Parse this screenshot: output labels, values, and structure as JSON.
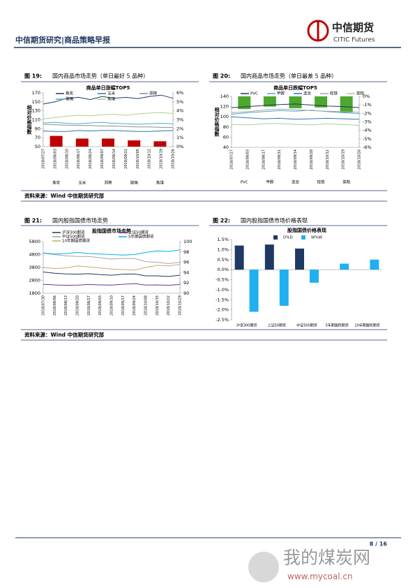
{
  "header": {
    "title": "中信期货研究|商品策略早报",
    "logo_cn": "中信期货",
    "logo_en": "CITIC Futures"
  },
  "figures": [
    {
      "number": "图 19:",
      "caption": "国内商品市场走势（单日最好 5 品种）"
    },
    {
      "number": "图 20:",
      "caption": "国内商品市场走势（单日最差 5 品种）"
    },
    {
      "number": "图 21:",
      "caption": "国内股指国债市场走势"
    },
    {
      "number": "图 22:",
      "caption": "国内股指国债市场价格表现"
    }
  ],
  "sources": [
    "资料来源：Wind 中信期货研究部",
    "资料来源：Wind 中信期货研究部"
  ],
  "footer": {
    "page": "8 / 16"
  },
  "watermark": {
    "text": "我的煤炭网",
    "url": "www.mycoal.cn"
  },
  "chart_data": [
    {
      "type": "line",
      "title": "商品单日涨幅TOP5",
      "ylabel": "相对价格指数",
      "x": [
        "2018/07/27",
        "2018/08/03",
        "2018/08/10",
        "2018/08/17",
        "2018/08/24",
        "2018/09/07",
        "2018/09/14",
        "2018/09/21",
        "2018/10/05",
        "2018/10/12",
        "2018/10/19",
        "2018/10/26"
      ],
      "series": [
        {
          "name": "焦炭",
          "color": "#1f3864",
          "values": [
            145,
            150,
            158,
            160,
            155,
            162,
            158,
            160,
            157,
            162,
            165,
            158
          ]
        },
        {
          "name": "玉米",
          "color": "#2e75b6",
          "values": [
            85,
            84,
            84,
            86,
            85,
            86,
            86,
            85,
            84,
            84,
            85,
            86
          ]
        },
        {
          "name": "郑棉",
          "color": "#8c8c8c",
          "values": [
            100,
            99,
            98,
            97,
            97,
            96,
            96,
            95,
            94,
            94,
            93,
            93
          ]
        },
        {
          "name": "玻璃",
          "color": "#4bacc6",
          "values": [
            103,
            104,
            102,
            101,
            103,
            104,
            102,
            101,
            100,
            101,
            102,
            101
          ]
        },
        {
          "name": "焦煤",
          "color": "#a9d18e",
          "values": [
            112,
            115,
            118,
            120,
            119,
            121,
            122,
            120,
            123,
            125,
            126,
            124
          ]
        }
      ],
      "bar_categories": [
        "焦炭",
        "玉米",
        "郑棉",
        "玻璃",
        "焦煤"
      ],
      "bar_values": [
        1.2,
        0.9,
        0.9,
        0.7,
        0.6
      ],
      "bar_color": "#c00000",
      "ylim": [
        50,
        170
      ],
      "yticks": [
        50,
        70,
        90,
        110,
        130,
        150,
        170
      ],
      "y2lim": [
        0,
        6
      ],
      "y2ticks": [
        {
          "value": 0,
          "label": "0%"
        },
        {
          "value": 1,
          "label": "1%"
        },
        {
          "value": 2,
          "label": "2%"
        },
        {
          "value": 3,
          "label": "3%"
        },
        {
          "value": 4,
          "label": "4%"
        },
        {
          "value": 5,
          "label": "5%"
        },
        {
          "value": 6,
          "label": "6%"
        }
      ]
    },
    {
      "type": "line",
      "title": "商品单日跌幅TOP5",
      "ylabel": "相对价格指数",
      "x": [
        "2018/07/27",
        "2018/08/03",
        "2018/08/17",
        "2018/08/31",
        "2018/09/14",
        "2018/09/28",
        "2018/10/12",
        "2018/10/19",
        "2018/10/26"
      ],
      "series": [
        {
          "name": "PVC",
          "color": "#1f3864",
          "values": [
            118,
            120,
            122,
            124,
            125,
            123,
            121,
            120,
            118
          ]
        },
        {
          "name": "甲醇",
          "color": "#4bacc6",
          "values": [
            105,
            108,
            110,
            112,
            111,
            113,
            110,
            108,
            106
          ]
        },
        {
          "name": "连豆",
          "color": "#2e75b6",
          "values": [
            100,
            98,
            96,
            97,
            95,
            96,
            97,
            96,
            95
          ]
        },
        {
          "name": "硅铁",
          "color": "#a5a5a5",
          "values": [
            108,
            110,
            113,
            115,
            114,
            112,
            111,
            110,
            109
          ]
        },
        {
          "name": "菜粕",
          "color": "#a9d18e",
          "values": [
            85,
            84,
            86,
            87,
            85,
            84,
            86,
            85,
            83
          ]
        }
      ],
      "bar_categories": [
        "PVC",
        "甲醇",
        "连豆",
        "硅铁",
        "菜粕"
      ],
      "bar_values": [
        -1.5,
        -1.2,
        -1.4,
        -1.3,
        -1.9
      ],
      "bar_color": "#4ea72e",
      "ylim": [
        40,
        140
      ],
      "yticks": [
        40,
        60,
        80,
        100,
        120,
        140
      ],
      "y2lim": [
        -6,
        0
      ],
      "y2ticks": [
        {
          "value": -6,
          "label": "-6%"
        },
        {
          "value": -5,
          "label": "-5%"
        },
        {
          "value": -4,
          "label": "-4%"
        },
        {
          "value": -3,
          "label": "-3%"
        },
        {
          "value": -2,
          "label": "-2%"
        },
        {
          "value": -1,
          "label": "-1%"
        },
        {
          "value": 0,
          "label": "0%"
        }
      ]
    },
    {
      "type": "line",
      "title": "股指国债市场走势",
      "x": [
        "2018/07/30",
        "2018/08/06",
        "2018/08/13",
        "2018/08/20",
        "2018/08/27",
        "2018/09/03",
        "2018/09/10",
        "2018/09/17",
        "2018/09/24",
        "2018/10/08",
        "2018/10/15",
        "2018/10/22",
        "2018/10/29"
      ],
      "series": [
        {
          "name": "沪深300期货",
          "color": "#1f3864",
          "values": [
            3450,
            3350,
            3300,
            3280,
            3320,
            3250,
            3200,
            3280,
            3300,
            3150,
            3150,
            3100,
            3200
          ]
        },
        {
          "name": "上证50期货",
          "color": "#7030a0",
          "values": [
            2500,
            2450,
            2420,
            2430,
            2480,
            2450,
            2430,
            2500,
            2550,
            2430,
            2450,
            2420,
            2480
          ]
        },
        {
          "name": "中证500期货",
          "color": "#a5a5a5",
          "values": [
            4900,
            4800,
            4700,
            4650,
            4650,
            4550,
            4450,
            4500,
            4500,
            4250,
            4200,
            4100,
            4200
          ]
        },
        {
          "name": "5年期国债期货",
          "color": "#00b0f0",
          "axis": "y2",
          "values": [
            97.8,
            97.6,
            97.7,
            97.9,
            97.7,
            97.6,
            97.5,
            97.4,
            97.5,
            97.9,
            98.2,
            98.1,
            98.4
          ]
        },
        {
          "name": "10年期国债期货",
          "color": "#c9a96e",
          "axis": "y2",
          "values": [
            95.0,
            94.8,
            94.9,
            95.3,
            95.1,
            94.9,
            94.7,
            94.6,
            94.5,
            95.0,
            95.4,
            95.3,
            95.6
          ]
        }
      ],
      "ylim": [
        1800,
        5800
      ],
      "yticks": [
        1800,
        2800,
        3800,
        4800,
        5800
      ],
      "y2lim": [
        90,
        100
      ],
      "y2ticks": [
        90,
        92,
        94,
        96,
        98,
        100
      ]
    },
    {
      "type": "bar",
      "title": "股指国债价格表现",
      "categories": [
        "沪深300期货",
        "上证50期货",
        "中证500期货",
        "5年期国债期货",
        "10年期国债期货"
      ],
      "series": [
        {
          "name": "D%D",
          "color": "#1f3864",
          "values": [
            1.2,
            1.25,
            1.05,
            0,
            0
          ]
        },
        {
          "name": "W%W",
          "color": "#1fb0f0",
          "values": [
            -2.1,
            -1.8,
            -0.65,
            0.3,
            0.5
          ]
        }
      ],
      "ylim": [
        -2.5,
        1.5
      ],
      "yticks": [
        {
          "value": -2.5,
          "label": "-2.5%"
        },
        {
          "value": -2,
          "label": "-2.0%"
        },
        {
          "value": -1.5,
          "label": "-1.5%"
        },
        {
          "value": -1,
          "label": "-1.0%"
        },
        {
          "value": -0.5,
          "label": "-0.5%"
        },
        {
          "value": 0,
          "label": "0.0%"
        },
        {
          "value": 0.5,
          "label": "0.5%"
        },
        {
          "value": 1,
          "label": "1.0%"
        },
        {
          "value": 1.5,
          "label": "1.5%"
        }
      ]
    }
  ]
}
